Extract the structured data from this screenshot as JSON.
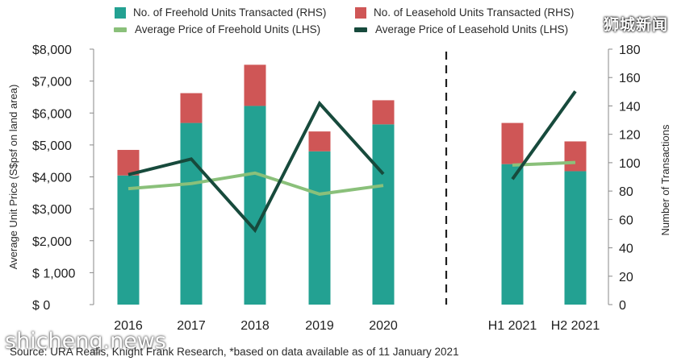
{
  "chart_data": {
    "type": "bar",
    "categories": [
      "2016",
      "2017",
      "2018",
      "2019",
      "2020",
      "H1 2021",
      "H2 2021"
    ],
    "series": [
      {
        "name": "No. of Freehold Units Transacted (RHS)",
        "kind": "stacked-bar",
        "axis": "right",
        "color": "#23a192",
        "values": [
          91,
          128,
          140,
          108,
          127,
          99,
          94
        ]
      },
      {
        "name": "No. of Leasehold Units Transacted (RHS)",
        "kind": "stacked-bar",
        "axis": "right",
        "color": "#cf5656",
        "values": [
          18,
          21,
          29,
          14,
          17,
          29,
          21
        ]
      },
      {
        "name": "Average Price of Freehold Units (LHS)",
        "kind": "line",
        "axis": "left",
        "color": "#8ac07a",
        "values": [
          3630,
          3790,
          4120,
          3460,
          3730,
          4370,
          4450
        ]
      },
      {
        "name": "Average Price of Leasehold Units (LHS)",
        "kind": "line",
        "axis": "left",
        "color": "#174a3c",
        "values": [
          4070,
          4560,
          2330,
          6300,
          4090,
          3930,
          6680
        ]
      }
    ],
    "ylabel": "Average Unit Price (S$psf on land area)",
    "y2label": "Number of Transactions",
    "ylim": [
      0,
      8000
    ],
    "y2lim": [
      0,
      180
    ],
    "yticks": [
      "$ 0",
      "$ 1,000",
      "$2,000",
      "$3,000",
      "$4,000",
      "$5,000",
      "$6,000",
      "$7,000",
      "$8,000"
    ],
    "y2ticks": [
      "0",
      "20",
      "40",
      "60",
      "80",
      "100",
      "120",
      "140",
      "160",
      "180"
    ],
    "divider": "dashed vertical line between 2020 and H1 2021",
    "grid": false,
    "legend_position": "top"
  },
  "source_note": "Source: URA Realis, Knight Frank Research, *based on data available as of 11 January 2021",
  "watermarks": {
    "top": "狮城新闻",
    "bottom": "shicheng.news"
  }
}
